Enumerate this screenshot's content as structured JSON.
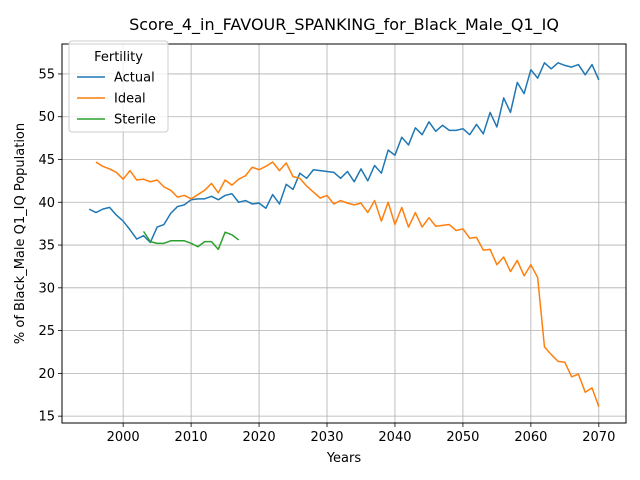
{
  "chart_data": {
    "type": "line",
    "title": "Score_4_in_FAVOUR_SPANKING_for_Black_Male_Q1_IQ",
    "xlabel": "Years",
    "ylabel": "% of Black_Male Q1_IQ Population",
    "xlim": [
      1991,
      2074
    ],
    "ylim": [
      14.2,
      58.5
    ],
    "xticks": [
      2000,
      2010,
      2020,
      2030,
      2040,
      2050,
      2060,
      2070
    ],
    "yticks": [
      15,
      20,
      25,
      30,
      35,
      40,
      45,
      50,
      55
    ],
    "grid": true,
    "legend": {
      "title": "Fertility",
      "placement": "top-left"
    },
    "series": [
      {
        "name": "Actual",
        "color": "#1f77b4",
        "x": [
          1995,
          1996,
          1997,
          1998,
          1999,
          2000,
          2001,
          2002,
          2003,
          2004,
          2005,
          2006,
          2007,
          2008,
          2009,
          2010,
          2011,
          2012,
          2013,
          2014,
          2015,
          2016,
          2017,
          2018,
          2019,
          2020,
          2021,
          2022,
          2023,
          2024,
          2025,
          2026,
          2027,
          2028,
          2029,
          2030,
          2031,
          2032,
          2033,
          2034,
          2035,
          2036,
          2037,
          2038,
          2039,
          2040,
          2041,
          2042,
          2043,
          2044,
          2045,
          2046,
          2047,
          2048,
          2049,
          2050,
          2051,
          2052,
          2053,
          2054,
          2055,
          2056,
          2057,
          2058,
          2059,
          2060,
          2061,
          2062,
          2063,
          2064,
          2065,
          2066,
          2067,
          2068,
          2069,
          2070
        ],
        "values": [
          39.2,
          38.8,
          39.2,
          39.4,
          38.5,
          37.8,
          36.8,
          35.7,
          36.1,
          35.3,
          37.1,
          37.4,
          38.7,
          39.5,
          39.7,
          40.3,
          40.4,
          40.4,
          40.7,
          40.3,
          40.8,
          41.0,
          40.0,
          40.2,
          39.8,
          39.9,
          39.3,
          40.9,
          39.8,
          42.1,
          41.5,
          43.4,
          42.8,
          43.8,
          43.7,
          43.6,
          43.5,
          42.8,
          43.6,
          42.4,
          43.9,
          42.5,
          44.3,
          43.4,
          46.1,
          45.5,
          47.6,
          46.7,
          48.7,
          47.9,
          49.4,
          48.3,
          49.0,
          48.4,
          48.4,
          48.6,
          47.9,
          49.1,
          48.0,
          50.5,
          48.8,
          52.2,
          50.5,
          54.0,
          52.7,
          55.5,
          54.5,
          56.3,
          55.6,
          56.3,
          56.0,
          55.8,
          56.1,
          54.9,
          56.1,
          54.3
        ]
      },
      {
        "name": "Ideal",
        "color": "#ff7f0e",
        "x": [
          1996,
          1997,
          1998,
          1999,
          2000,
          2001,
          2002,
          2003,
          2004,
          2005,
          2006,
          2007,
          2008,
          2009,
          2010,
          2011,
          2012,
          2013,
          2014,
          2015,
          2016,
          2017,
          2018,
          2019,
          2020,
          2021,
          2022,
          2023,
          2024,
          2025,
          2026,
          2027,
          2028,
          2029,
          2030,
          2031,
          2032,
          2033,
          2034,
          2035,
          2036,
          2037,
          2038,
          2039,
          2040,
          2041,
          2042,
          2043,
          2044,
          2045,
          2046,
          2047,
          2048,
          2049,
          2050,
          2051,
          2052,
          2053,
          2054,
          2055,
          2056,
          2057,
          2058,
          2059,
          2060,
          2061,
          2062,
          2063,
          2064,
          2065,
          2066,
          2067,
          2068,
          2069,
          2070
        ],
        "values": [
          44.7,
          44.2,
          43.9,
          43.5,
          42.7,
          43.7,
          42.6,
          42.7,
          42.4,
          42.6,
          41.8,
          41.4,
          40.6,
          40.8,
          40.4,
          40.9,
          41.4,
          42.2,
          41.1,
          42.6,
          42.0,
          42.7,
          43.1,
          44.1,
          43.8,
          44.2,
          44.7,
          43.7,
          44.6,
          43.0,
          42.8,
          41.9,
          41.2,
          40.5,
          40.8,
          39.8,
          40.2,
          39.9,
          39.7,
          39.9,
          38.8,
          40.2,
          37.8,
          40.0,
          37.4,
          39.4,
          37.1,
          38.8,
          37.1,
          38.2,
          37.2,
          37.3,
          37.4,
          36.7,
          36.9,
          35.8,
          35.9,
          34.4,
          34.5,
          32.7,
          33.6,
          31.9,
          33.2,
          31.4,
          32.7,
          31.2,
          23.1,
          22.2,
          21.4,
          21.3,
          19.6,
          19.9,
          17.8,
          18.3,
          16.1
        ]
      },
      {
        "name": "Sterile",
        "color": "#2ca02c",
        "x": [
          2003,
          2004,
          2005,
          2006,
          2007,
          2008,
          2009,
          2010,
          2011,
          2012,
          2013,
          2014,
          2015,
          2016,
          2017
        ],
        "values": [
          36.6,
          35.4,
          35.2,
          35.2,
          35.5,
          35.5,
          35.5,
          35.2,
          34.8,
          35.4,
          35.4,
          34.5,
          36.5,
          36.2,
          35.6
        ]
      }
    ]
  }
}
